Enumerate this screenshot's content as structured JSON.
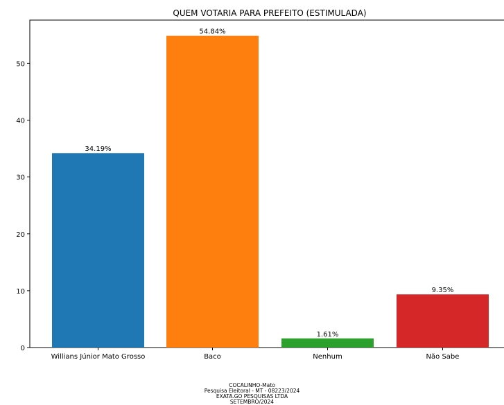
{
  "chart_data": {
    "type": "bar",
    "title": "QUEM VOTARIA PARA PREFEITO (ESTIMULADA)",
    "xlabel": "",
    "ylabel": "",
    "categories": [
      "Willians Júnior Mato Grosso",
      "Baco",
      "Nenhum",
      "Não Sabe"
    ],
    "values": [
      34.19,
      54.84,
      1.61,
      9.35
    ],
    "value_labels": [
      "34.19%",
      "54.84%",
      "1.61%",
      "9.35%"
    ],
    "colors": [
      "#1f77b4",
      "#ff7f0e",
      "#2ca02c",
      "#d62728"
    ],
    "ylim": [
      0,
      57.6
    ],
    "yticks": [
      0,
      10,
      20,
      30,
      40,
      50
    ],
    "grid": false,
    "legend": "none"
  },
  "footer": {
    "line1": "COCALINHO-Mato",
    "line2": "Pesquisa Eleitoral - MT - 08223/2024",
    "line3": "EXATA.GO PESQUISAS LTDA",
    "line4": "SETEMBRO/2024"
  }
}
